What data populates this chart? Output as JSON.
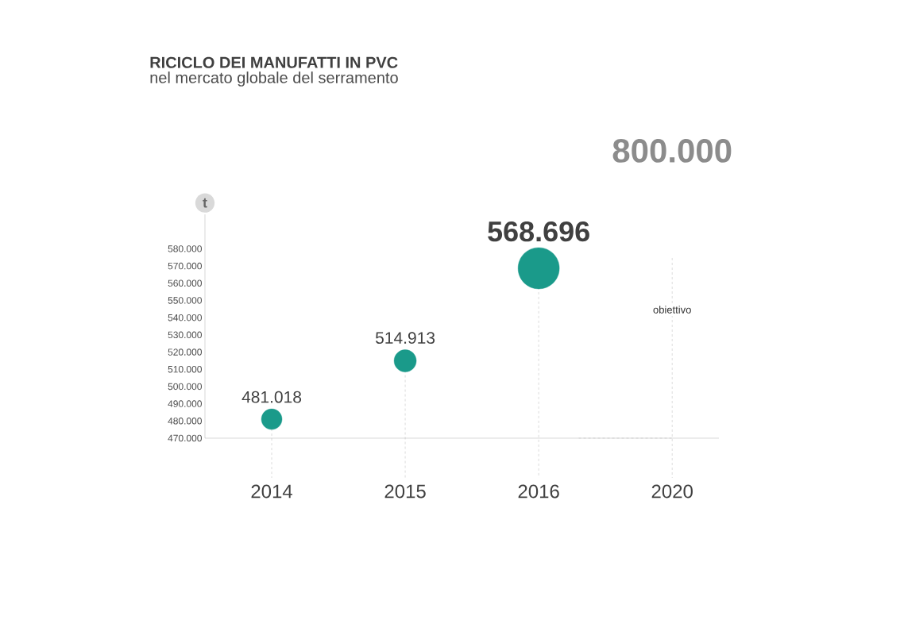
{
  "chart_data": {
    "type": "bubble",
    "title": "RICICLO DEI MANUFATTI IN PVC",
    "subtitle": "nel mercato globale del serramento",
    "ylabel": "t",
    "categories": [
      "2014",
      "2015",
      "2016",
      "2020"
    ],
    "series": [
      {
        "color": "#1a9a8a",
        "values": [
          481018,
          514913,
          568696,
          null
        ],
        "sizes": [
          0.25,
          0.29,
          1,
          null
        ],
        "value_labels": [
          "481.018",
          "514.913",
          "568.696",
          null
        ]
      }
    ],
    "ylim": [
      470000,
      600000
    ],
    "yticks": [
      {
        "value": 470000,
        "label": "470.000"
      },
      {
        "value": 480000,
        "label": "480.000"
      },
      {
        "value": 490000,
        "label": "490.000"
      },
      {
        "value": 500000,
        "label": "500.000"
      },
      {
        "value": 510000,
        "label": "510.000"
      },
      {
        "value": 520000,
        "label": "520.000"
      },
      {
        "value": 530000,
        "label": "530.000"
      },
      {
        "value": 540000,
        "label": "540.000"
      },
      {
        "value": 550000,
        "label": "550.000"
      },
      {
        "value": 560000,
        "label": "560.000"
      },
      {
        "value": 570000,
        "label": "570.000"
      },
      {
        "value": 580000,
        "label": "580.000"
      }
    ],
    "annotations": [
      "800.000",
      "obiettivo"
    ],
    "grid": "x"
  }
}
